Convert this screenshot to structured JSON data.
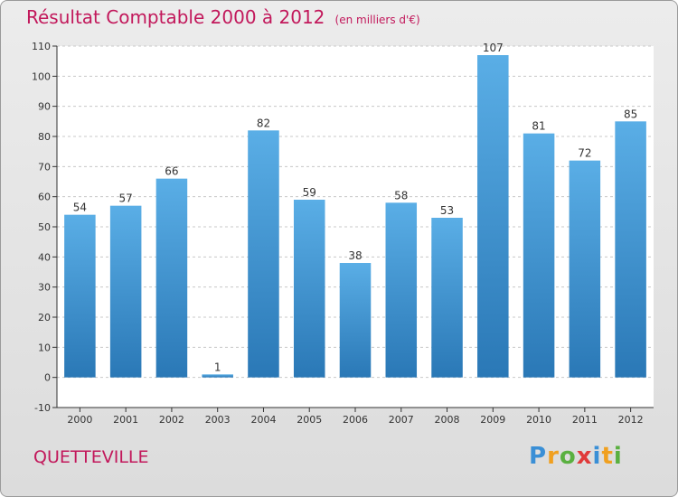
{
  "chart_data": {
    "type": "bar",
    "title": "Résultat Comptable 2000 à 2012",
    "subtitle": "(en milliers d'€)",
    "categories": [
      "2000",
      "2001",
      "2002",
      "2003",
      "2004",
      "2005",
      "2006",
      "2007",
      "2008",
      "2009",
      "2010",
      "2011",
      "2012"
    ],
    "values": [
      54,
      57,
      66,
      1,
      82,
      59,
      38,
      58,
      53,
      107,
      81,
      72,
      85
    ],
    "ylim": [
      -10,
      110
    ],
    "yticks": [
      -10,
      0,
      10,
      20,
      30,
      40,
      50,
      60,
      70,
      80,
      90,
      100,
      110
    ],
    "xlabel": "",
    "ylabel": "",
    "grid": true,
    "bar_color_top": "#5aaee6",
    "bar_color_bottom": "#2a78b6"
  },
  "footer": {
    "commune": "QUETTEVILLE",
    "logo": [
      "P",
      "r",
      "o",
      "x",
      "i",
      "t",
      "i"
    ]
  },
  "colors": {
    "title": "#c2185b",
    "logo": [
      "#3a8fd6",
      "#f0a020",
      "#5ab040",
      "#e03a3a",
      "#3a8fd6",
      "#f0a020",
      "#5ab040"
    ]
  }
}
